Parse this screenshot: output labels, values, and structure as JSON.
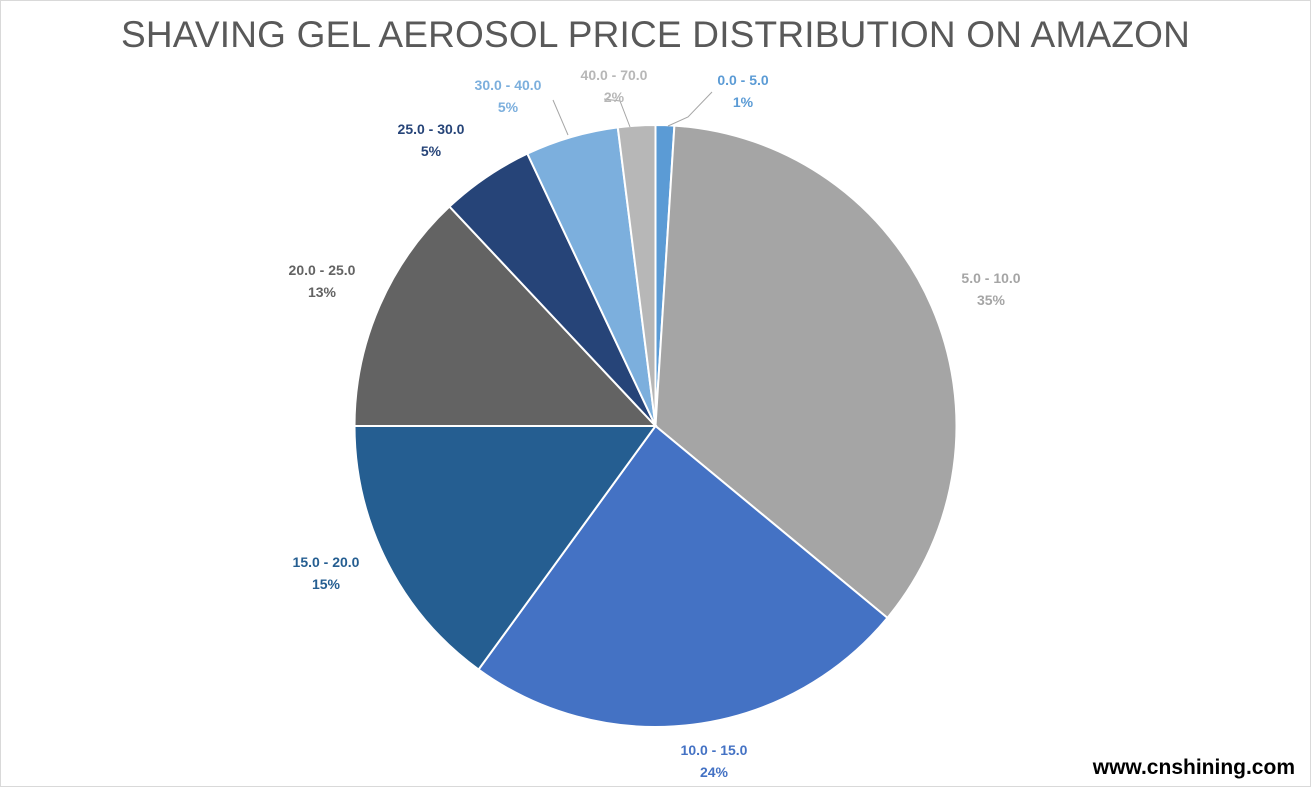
{
  "chart_data": {
    "type": "pie",
    "title": "SHAVING GEL AEROSOL PRICE DISTRIBUTION ON AMAZON",
    "slices": [
      {
        "category": "0.0 - 5.0",
        "value": 1,
        "label": "1%",
        "color": "#5b9bd5"
      },
      {
        "category": "5.0 - 10.0",
        "value": 35,
        "label": "35%",
        "color": "#a5a5a5"
      },
      {
        "category": "10.0 - 15.0",
        "value": 24,
        "label": "24%",
        "color": "#4472c4"
      },
      {
        "category": "15.0 - 20.0",
        "value": 15,
        "label": "15%",
        "color": "#255e91"
      },
      {
        "category": "20.0 - 25.0",
        "value": 13,
        "label": "13%",
        "color": "#636363"
      },
      {
        "category": "25.0 - 30.0",
        "value": 5,
        "label": "5%",
        "color": "#264478"
      },
      {
        "category": "30.0 - 40.0",
        "value": 5,
        "label": "5%",
        "color": "#7cafdd"
      },
      {
        "category": "40.0 - 70.0",
        "value": 2,
        "label": "2%",
        "color": "#b7b7b7"
      }
    ],
    "legend": "none",
    "data_labels": "category and percentage, outside end"
  },
  "watermark": "www.cnshining.com"
}
